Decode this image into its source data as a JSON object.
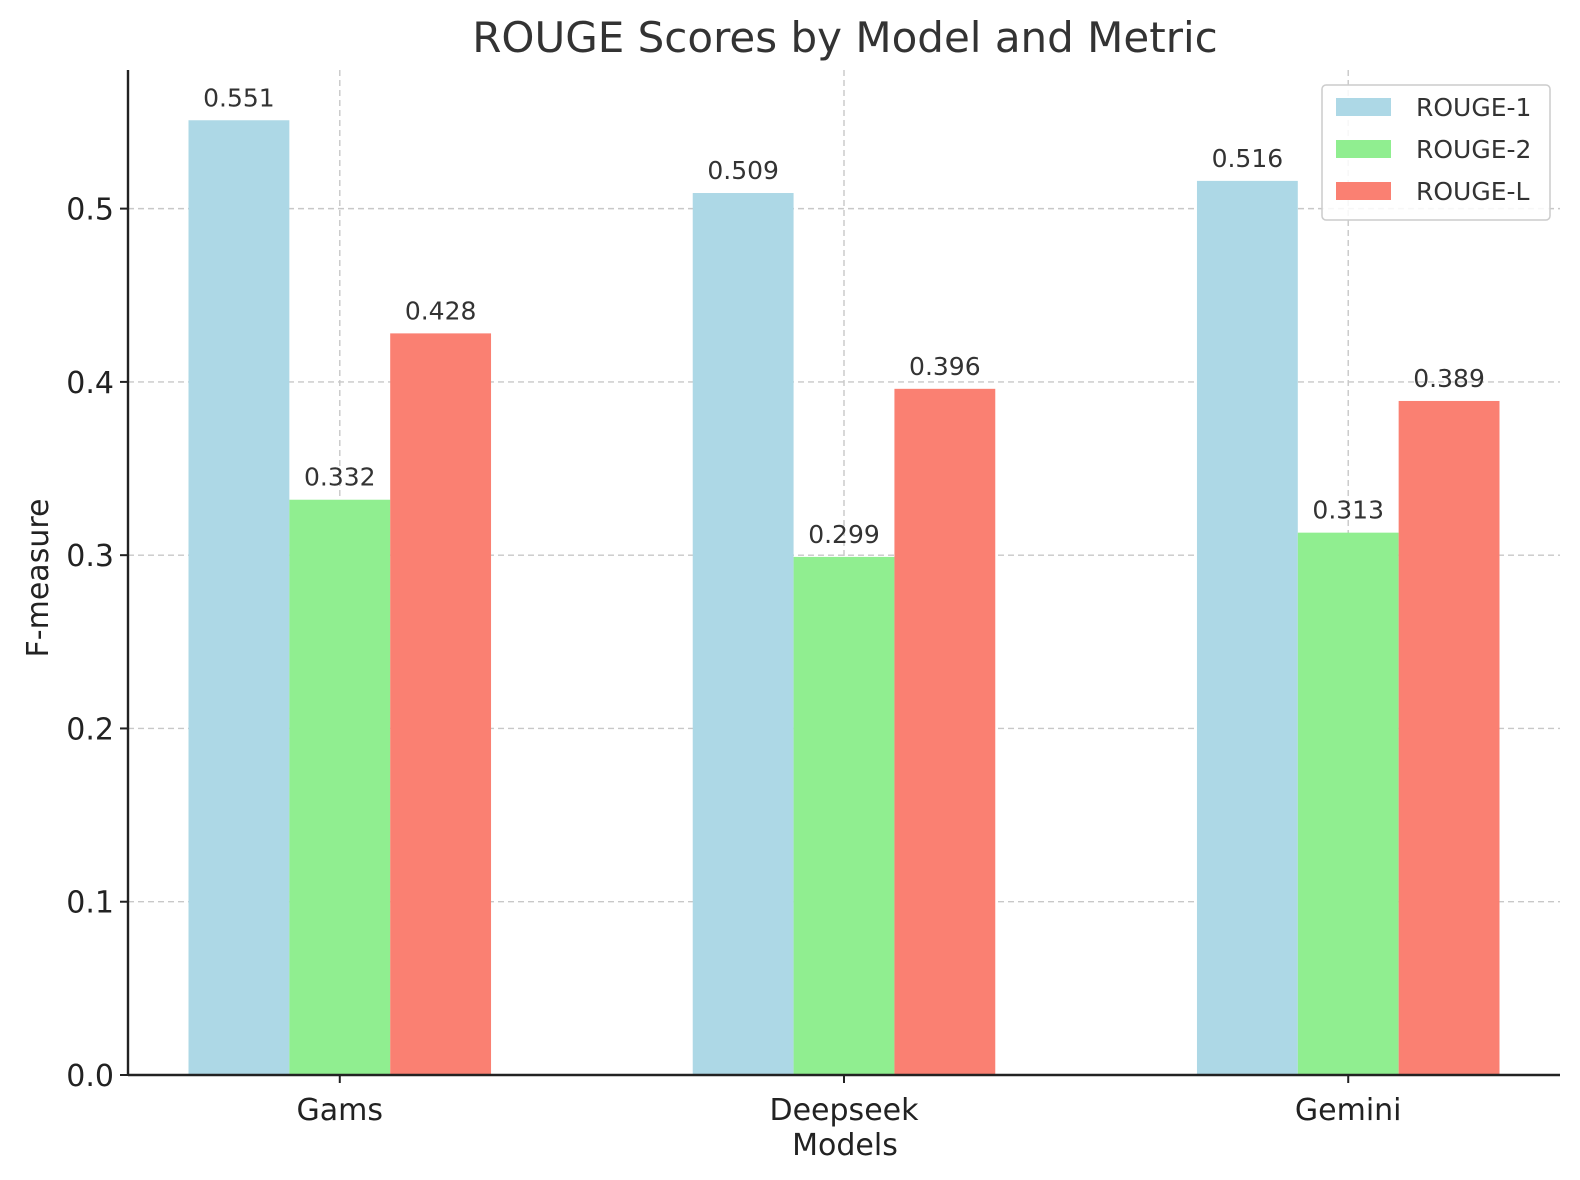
{
  "chart_data": {
    "type": "bar",
    "title": "ROUGE Scores by Model and Metric",
    "xlabel": "Models",
    "ylabel": "F-measure",
    "categories": [
      "Gams",
      "Deepseek",
      "Gemini"
    ],
    "series": [
      {
        "name": "ROUGE-1",
        "color": "#add8e6",
        "values": [
          0.551,
          0.509,
          0.516
        ],
        "labels": [
          "0.551",
          "0.509",
          "0.516"
        ]
      },
      {
        "name": "ROUGE-2",
        "color": "#90ee90",
        "values": [
          0.332,
          0.299,
          0.313
        ],
        "labels": [
          "0.332",
          "0.299",
          "0.313"
        ]
      },
      {
        "name": "ROUGE-L",
        "color": "#fa8072",
        "values": [
          0.428,
          0.396,
          0.389
        ],
        "labels": [
          "0.428",
          "0.396",
          "0.389"
        ]
      }
    ],
    "ylim": [
      0,
      0.58
    ],
    "yticks": [
      0.0,
      0.1,
      0.2,
      0.3,
      0.4,
      0.5
    ],
    "ytick_labels": [
      "0.0",
      "0.1",
      "0.2",
      "0.3",
      "0.4",
      "0.5"
    ],
    "grid": true,
    "legend_position": "top-right"
  }
}
